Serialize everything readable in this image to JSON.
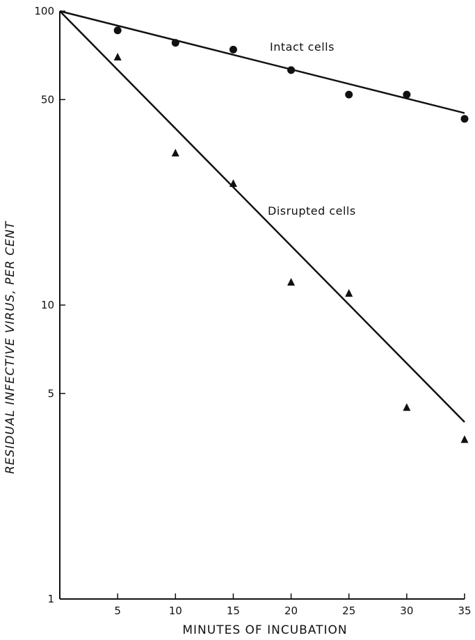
{
  "chart_data": {
    "type": "scatter",
    "xlabel": "MINUTES OF INCUBATION",
    "ylabel": "RESIDUAL INFECTIVE VIRUS, PER CENT",
    "xlim": [
      0,
      35
    ],
    "ylim": [
      1,
      100
    ],
    "yscale": "log",
    "grid": false,
    "x_ticks": [
      5,
      10,
      15,
      20,
      25,
      30,
      35
    ],
    "y_ticks": [
      1,
      5,
      10,
      50,
      100
    ],
    "series": [
      {
        "name": "Intact cells",
        "marker": "circle",
        "points": [
          [
            5,
            86
          ],
          [
            10,
            78
          ],
          [
            15,
            74
          ],
          [
            20,
            63
          ],
          [
            25,
            52
          ],
          [
            30,
            52
          ],
          [
            35,
            43
          ]
        ],
        "fit_line": [
          [
            0,
            100
          ],
          [
            35,
            45
          ]
        ]
      },
      {
        "name": "Disrupted cells",
        "marker": "triangle",
        "points": [
          [
            5,
            70
          ],
          [
            10,
            33
          ],
          [
            15,
            26
          ],
          [
            20,
            12
          ],
          [
            25,
            11
          ],
          [
            30,
            4.5
          ],
          [
            35,
            3.5
          ]
        ],
        "fit_line": [
          [
            0,
            100
          ],
          [
            35,
            4
          ]
        ]
      }
    ],
    "color": "#111111"
  }
}
